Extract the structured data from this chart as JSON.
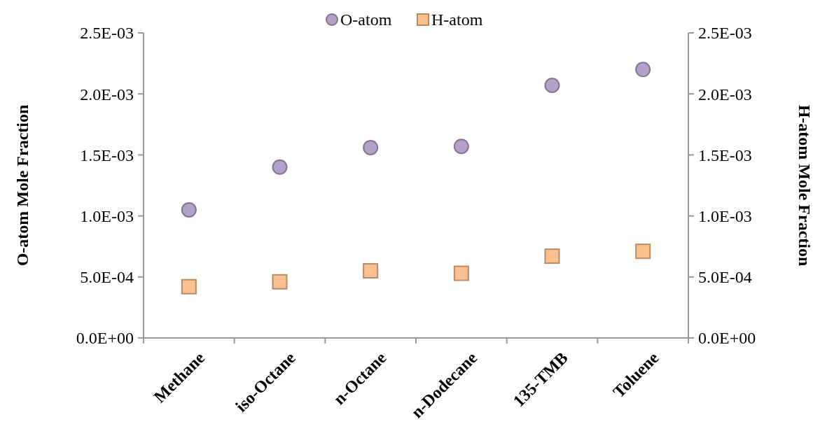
{
  "chart_data": {
    "type": "scatter",
    "ylabel": "O-atom Mole Fraction",
    "y2label": "H-atom Mole Fraction",
    "categories": [
      "Methane",
      "iso-Octane",
      "n-Octane",
      "n-Dodecane",
      "135-TMB",
      "Toluene"
    ],
    "series": [
      {
        "name": "O-atom",
        "color": "#b3a2c7",
        "marker": "circle",
        "values": [
          0.00105,
          0.0014,
          0.00156,
          0.00157,
          0.00207,
          0.0022
        ]
      },
      {
        "name": "H-atom",
        "color": "#fac090",
        "marker": "square",
        "axis": "y2",
        "values": [
          0.00042,
          0.00046,
          0.00055,
          0.00053,
          0.00067,
          0.00071
        ]
      }
    ],
    "ylim": [
      0,
      0.0025
    ],
    "yticks": [
      {
        "value": 0,
        "label": "0.0E+00"
      },
      {
        "value": 0.0005,
        "label": "5.0E-04"
      },
      {
        "value": 0.001,
        "label": "1.0E-03"
      },
      {
        "value": 0.0015,
        "label": "1.5E-03"
      },
      {
        "value": 0.002,
        "label": "2.0E-03"
      },
      {
        "value": 0.0025,
        "label": "2.5E-03"
      }
    ],
    "y2lim": [
      0,
      0.0025
    ],
    "y2ticks": [
      {
        "value": 0,
        "label": "0.0E+00"
      },
      {
        "value": 0.0005,
        "label": "5.0E-04"
      },
      {
        "value": 0.001,
        "label": "1.0E-03"
      },
      {
        "value": 0.0015,
        "label": "1.5E-03"
      },
      {
        "value": 0.002,
        "label": "2.0E-03"
      },
      {
        "value": 0.0025,
        "label": "2.5E-03"
      }
    ],
    "grid": false,
    "legend": "top"
  }
}
